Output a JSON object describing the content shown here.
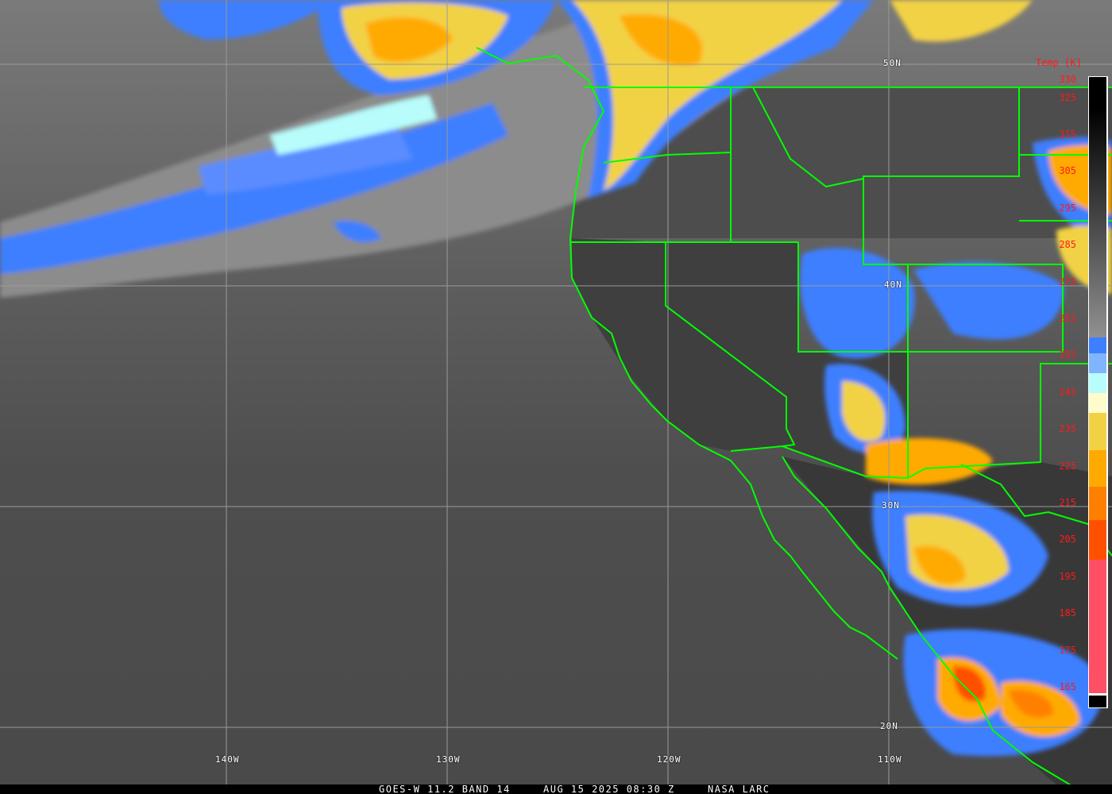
{
  "colorbar": {
    "title": "Temp [K]",
    "ticks": [
      "330",
      "325",
      "315",
      "305",
      "295",
      "285",
      "275",
      "265",
      "255",
      "245",
      "235",
      "225",
      "215",
      "205",
      "195",
      "185",
      "175",
      "165"
    ],
    "segments": [
      {
        "from": 330,
        "to": 259,
        "color": "gradient-black-to-gray"
      },
      {
        "from": 259,
        "to": 254,
        "color": "#3d7fff"
      },
      {
        "from": 254,
        "to": 249,
        "color": "#80b4ff"
      },
      {
        "from": 249,
        "to": 243,
        "color": "#b8fcfc"
      },
      {
        "from": 243,
        "to": 238,
        "color": "#fffbcc"
      },
      {
        "from": 238,
        "to": 228,
        "color": "#f2d245"
      },
      {
        "from": 228,
        "to": 218,
        "color": "#ffaa00"
      },
      {
        "from": 218,
        "to": 209,
        "color": "#ff8000"
      },
      {
        "from": 209,
        "to": 198,
        "color": "#ff5000"
      },
      {
        "from": 198,
        "to": 162,
        "color": "#ff4f64"
      },
      {
        "from": 162,
        "to": 160,
        "color": "#000000"
      }
    ]
  },
  "grid": {
    "latitudes": [
      "50N",
      "40N",
      "30N",
      "20N"
    ],
    "longitudes": [
      "140W",
      "130W",
      "120W",
      "110W"
    ],
    "border_color": "#00ff00"
  },
  "footer": {
    "satellite": "GOES-W 11.2 BAND 14",
    "datetime": "AUG 15 2025 08:30 Z",
    "source": "NASA LARC"
  }
}
